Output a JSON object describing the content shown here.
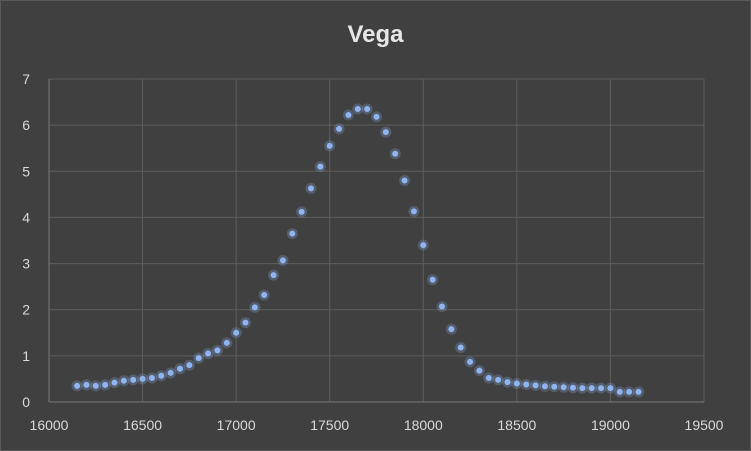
{
  "chart_data": {
    "type": "scatter",
    "title": "Vega",
    "xlabel": "",
    "ylabel": "",
    "xlim": [
      16000,
      19500
    ],
    "ylim": [
      0,
      7
    ],
    "x_ticks": [
      16000,
      16500,
      17000,
      17500,
      18000,
      18500,
      19000,
      19500
    ],
    "y_ticks": [
      0,
      1,
      2,
      3,
      4,
      5,
      6,
      7
    ],
    "grid": true,
    "legend": "none",
    "marker_color": "#8fb4f0",
    "background_color": "#404040",
    "series": [
      {
        "x": [
          16150,
          16200,
          16250,
          16300,
          16350,
          16400,
          16450,
          16500,
          16550,
          16600,
          16650,
          16700,
          16750,
          16800,
          16850,
          16900,
          16950,
          17000,
          17050,
          17100,
          17150,
          17200,
          17250,
          17300,
          17350,
          17400,
          17450,
          17500,
          17550,
          17600,
          17650,
          17700,
          17750,
          17800,
          17850,
          17900,
          17950,
          18000,
          18050,
          18100,
          18150,
          18200,
          18250,
          18300,
          18350,
          18400,
          18450,
          18500,
          18550,
          18600,
          18650,
          18700,
          18750,
          18800,
          18850,
          18900,
          18950,
          19000,
          19050,
          19100,
          19150
        ],
        "y": [
          0.35,
          0.37,
          0.35,
          0.37,
          0.42,
          0.46,
          0.48,
          0.5,
          0.52,
          0.57,
          0.63,
          0.72,
          0.8,
          0.95,
          1.05,
          1.12,
          1.28,
          1.5,
          1.72,
          2.05,
          2.32,
          2.75,
          3.07,
          3.65,
          4.12,
          4.63,
          5.1,
          5.55,
          5.92,
          6.22,
          6.35,
          6.35,
          6.18,
          5.85,
          5.38,
          4.8,
          4.13,
          3.4,
          2.65,
          2.07,
          1.58,
          1.18,
          0.87,
          0.68,
          0.52,
          0.48,
          0.43,
          0.4,
          0.38,
          0.36,
          0.34,
          0.33,
          0.32,
          0.31,
          0.3,
          0.3,
          0.3,
          0.3,
          0.22,
          0.22,
          0.22
        ]
      }
    ]
  }
}
